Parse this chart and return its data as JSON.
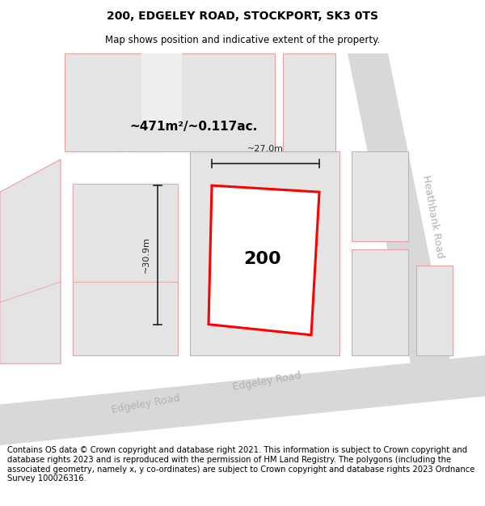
{
  "title": "200, EDGELEY ROAD, STOCKPORT, SK3 0TS",
  "subtitle": "Map shows position and indicative extent of the property.",
  "footer": "Contains OS data © Crown copyright and database right 2021. This information is subject to Crown copyright and database rights 2023 and is reproduced with the permission of HM Land Registry. The polygons (including the associated geometry, namely x, y co-ordinates) are subject to Crown copyright and database rights 2023 Ordnance Survey 100026316.",
  "area_label": "~471m²/~0.117ac.",
  "width_label": "~27.0m",
  "height_label": "~30.9m",
  "plot_number": "200",
  "bg_color": "#efefef",
  "road_color": "#d8d8d8",
  "building_face": "#e4e4e4",
  "building_edge": "#e8a0a0",
  "highlight_color": "#ff0000",
  "road_label_color": "#b0b0b0",
  "dim_color": "#222222",
  "title_fontsize": 10,
  "subtitle_fontsize": 8.5,
  "footer_fontsize": 7.2,
  "area_fontsize": 11,
  "plot_num_fontsize": 16,
  "dim_fontsize": 8,
  "road_label_fontsize": 9
}
